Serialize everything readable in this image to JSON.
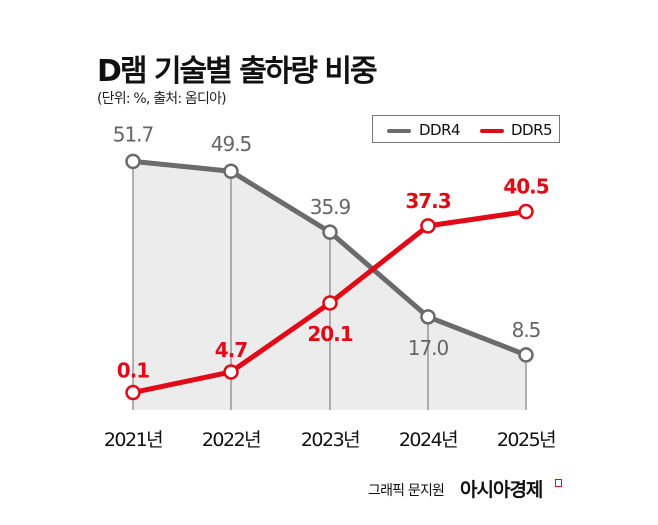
{
  "header": {
    "title": "D램 기술별 출하량 비중",
    "subtitle": "(단위: %, 출처: 옴디아)"
  },
  "footer": {
    "credit": "그래픽 문지원",
    "brand": "아시아경제",
    "brand_color": "#e10a17"
  },
  "chart_data": {
    "type": "line",
    "title": "D램 기술별 출하량 비중",
    "subtitle": "(단위: %, 출처: 옴디아)",
    "xlabel": "",
    "ylabel": "%",
    "categories": [
      "2021년",
      "2022년",
      "2023년",
      "2024년",
      "2025년"
    ],
    "ylim": [
      0,
      55
    ],
    "grid": false,
    "legend": {
      "placement": "top-right",
      "entries": [
        "DDR4",
        "DDR5"
      ]
    },
    "series": [
      {
        "name": "DDR4",
        "color": "#6b6b6b",
        "area_fill": "#ececec",
        "values": [
          51.7,
          49.5,
          35.9,
          17.0,
          8.5
        ],
        "labels": [
          "51.7",
          "49.5",
          "35.9",
          "17.0",
          "8.5"
        ]
      },
      {
        "name": "DDR5",
        "color": "#e10a17",
        "values": [
          0.1,
          4.7,
          20.1,
          37.3,
          40.5
        ],
        "labels": [
          "0.1",
          "4.7",
          "20.1",
          "37.3",
          "40.5"
        ]
      }
    ]
  }
}
